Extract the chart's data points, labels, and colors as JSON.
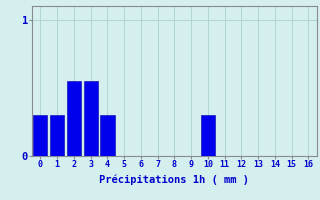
{
  "values": [
    0.3,
    0.3,
    0.55,
    0.55,
    0.3,
    0,
    0,
    0,
    0,
    0,
    0.3,
    0,
    0,
    0,
    0,
    0,
    0
  ],
  "x_labels": [
    "0",
    "1",
    "2",
    "3",
    "4",
    "5",
    "6",
    "7",
    "8",
    "9",
    "10",
    "11",
    "12",
    "13",
    "14",
    "15",
    "16"
  ],
  "bar_color": "#0000ee",
  "bar_edge_color": "#00009f",
  "background_color": "#d5efee",
  "grid_color": "#b0d4d4",
  "grid_color_h": "#b0d4d4",
  "xlabel": "Précipitations 1h ( mm )",
  "xlabel_color": "#0000cc",
  "tick_color": "#0000cc",
  "spine_color": "#888899",
  "ylabel_ticks": [
    0,
    1
  ],
  "ylim": [
    0,
    1.1
  ],
  "xlim": [
    -0.5,
    16.5
  ],
  "bar_width": 0.85,
  "xlabel_fontsize": 7.5,
  "xtick_fontsize": 6.0,
  "ytick_fontsize": 7.5
}
